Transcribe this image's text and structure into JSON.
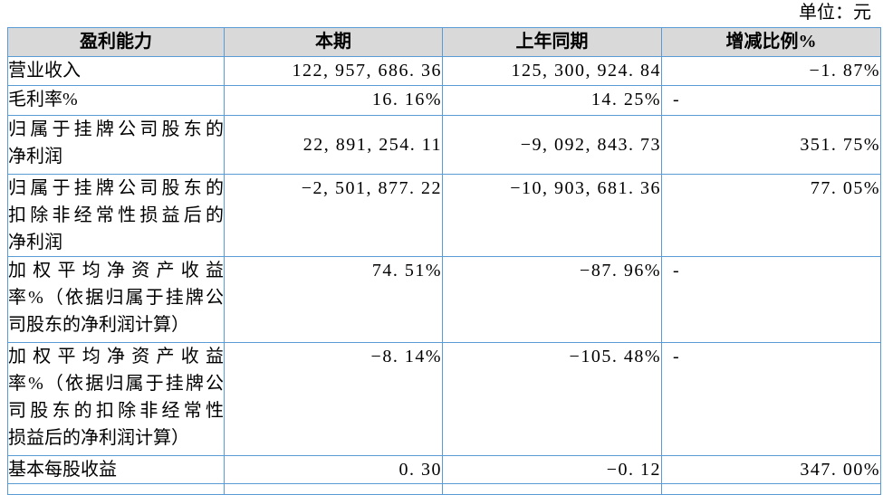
{
  "unit_label": "单位：元",
  "colors": {
    "border": "#5b9bd5",
    "header_bg": "#d9d9d9",
    "text": "#000000"
  },
  "table": {
    "headers": [
      "盈利能力",
      "本期",
      "上年同期",
      "增减比例%"
    ],
    "rows": [
      {
        "label_lines": [
          "营业收入"
        ],
        "current": "122,957,686.36",
        "prior": "125,300,924.84",
        "change": "-1.87%"
      },
      {
        "label_lines": [
          "毛利率%"
        ],
        "current": "16.16%",
        "prior": "14.25%",
        "change": "-"
      },
      {
        "label_lines": [
          "归属于挂牌公司股东的",
          "净利润"
        ],
        "current": "22,891,254.11",
        "prior": "-9,092,843.73",
        "change": "351.75%"
      },
      {
        "label_lines": [
          "归属于挂牌公司股东的",
          "扣除非经常性损益后的",
          "净利润"
        ],
        "current": "-2,501,877.22",
        "prior": "-10,903,681.36",
        "change": "77.05%"
      },
      {
        "label_lines": [
          "加权平均净资产收益",
          "率%（依据归属于挂牌公",
          "司股东的净利润计算）"
        ],
        "current": "74.51%",
        "prior": "-87.96%",
        "change": "-"
      },
      {
        "label_lines": [
          "加权平均净资产收益",
          "率%（依据归属于挂牌公",
          "司股东的扣除非经常性",
          "损益后的净利润计算）"
        ],
        "current": "-8.14%",
        "prior": "-105.48%",
        "change": "-"
      },
      {
        "label_lines": [
          "基本每股收益"
        ],
        "current": "0.30",
        "prior": "-0.12",
        "change": "347.00%"
      }
    ]
  }
}
